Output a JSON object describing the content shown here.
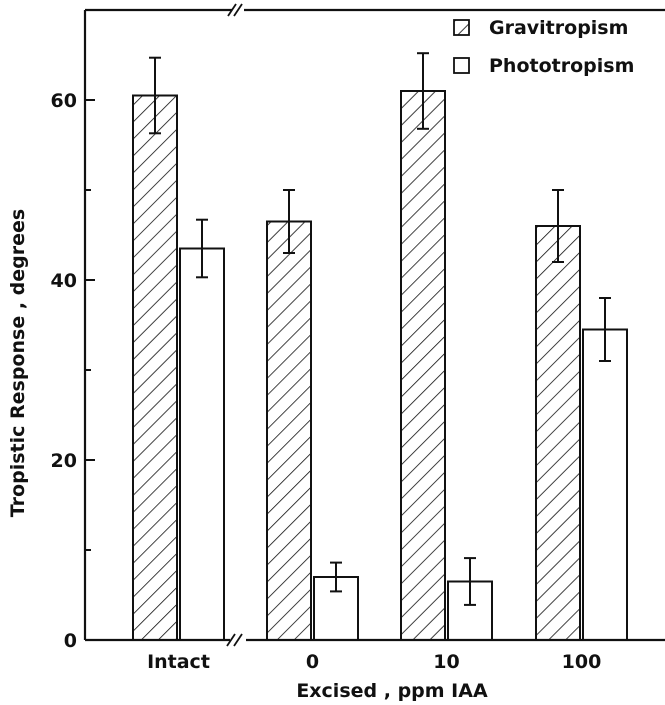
{
  "chart_data": {
    "type": "bar",
    "categories": [
      "Intact",
      "0",
      "10",
      "100"
    ],
    "series": [
      {
        "name": "Gravitropism",
        "pattern": "hatched",
        "values": [
          60.5,
          46.5,
          61.0,
          46.0
        ],
        "errors": [
          4.2,
          3.5,
          4.2,
          4.0
        ]
      },
      {
        "name": "Phototropism",
        "pattern": "open",
        "values": [
          43.5,
          7.0,
          6.5,
          34.5
        ],
        "errors": [
          3.2,
          1.6,
          2.6,
          3.5
        ]
      }
    ],
    "xlabel": "Excised , ppm IAA",
    "ylabel": "Tropistic Response , degrees",
    "ylim": [
      0,
      70
    ],
    "yticks": [
      0,
      20,
      40,
      60
    ],
    "y_minor_ticks": [
      10,
      30,
      50
    ],
    "x_axis_break": true,
    "legend_position": "top-right",
    "grid": false,
    "colors": {
      "ink": "#111111",
      "background": "#ffffff"
    }
  }
}
